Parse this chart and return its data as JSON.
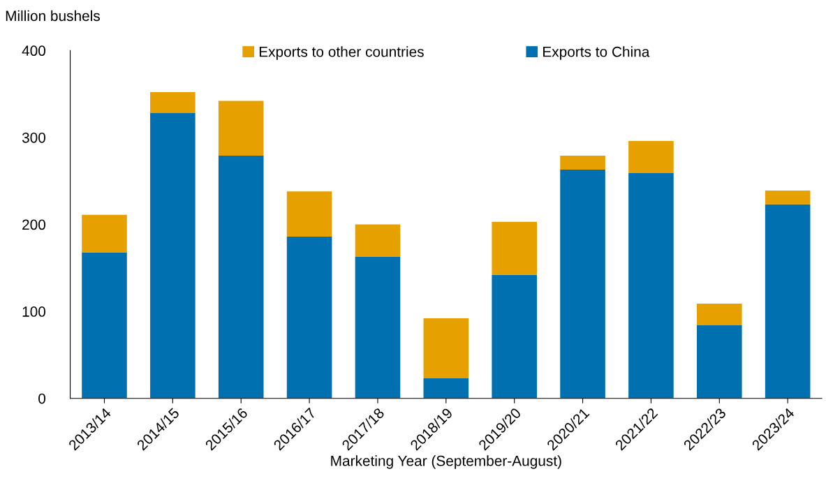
{
  "chart_data": {
    "type": "bar",
    "stacked": true,
    "ylabel": "Million bushels",
    "xlabel": "Marketing Year (September-August)",
    "categories": [
      "2013/14",
      "2014/15",
      "2015/16",
      "2016/17",
      "2017/18",
      "2018/19",
      "2019/20",
      "2020/21",
      "2021/22",
      "2022/23",
      "2023/24"
    ],
    "series": [
      {
        "name": "Exports to China",
        "color": "#0070b0",
        "values": [
          168,
          328,
          279,
          186,
          163,
          23,
          142,
          263,
          259,
          84,
          223
        ]
      },
      {
        "name": "Exports to other countries",
        "color": "#e6a000",
        "values": [
          43,
          24,
          63,
          52,
          37,
          69,
          61,
          16,
          37,
          25,
          16
        ]
      }
    ],
    "ylim": [
      0,
      400
    ],
    "yticks": [
      0,
      100,
      200,
      300,
      400
    ],
    "grid": false,
    "legend": "top"
  }
}
